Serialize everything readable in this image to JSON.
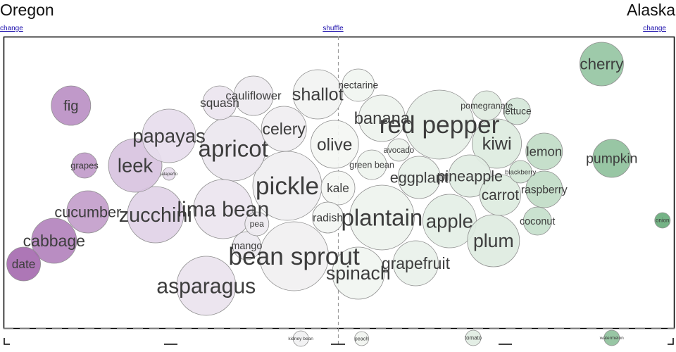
{
  "header": {
    "left_state": "Oregon",
    "right_state": "Alaska",
    "left_change": "change",
    "right_change": "change",
    "shuffle": "shuffle"
  },
  "colors": {
    "left_strong": "#9b59a6",
    "left_light": "#e7dded",
    "neutral": "#f4f6f3",
    "right_light": "#dcebdf",
    "right_strong": "#5fa873",
    "stroke": "#8f8f8f",
    "frame": "#000000",
    "divider": "#999999"
  },
  "chart_data": {
    "type": "scatter",
    "title": "",
    "xlabel": "",
    "ylabel": "",
    "xlim": [
      -1,
      1
    ],
    "items": [
      {
        "name": "fig",
        "x": -0.79,
        "y": 150,
        "size": 28
      },
      {
        "name": "grapes",
        "x": -0.75,
        "y": 235,
        "size": 18
      },
      {
        "name": "leek",
        "x": -0.6,
        "y": 235,
        "size": 38
      },
      {
        "name": "papayas",
        "x": -0.5,
        "y": 193,
        "size": 38
      },
      {
        "name": "jalapeño",
        "x": -0.5,
        "y": 247,
        "size": 9
      },
      {
        "name": "cucumber",
        "x": -0.74,
        "y": 301,
        "size": 30
      },
      {
        "name": "zucchini",
        "x": -0.54,
        "y": 305,
        "size": 40
      },
      {
        "name": "cabbage",
        "x": -0.84,
        "y": 342,
        "size": 32
      },
      {
        "name": "date",
        "x": -0.93,
        "y": 375,
        "size": 24
      },
      {
        "name": "squash",
        "x": -0.35,
        "y": 146,
        "size": 24
      },
      {
        "name": "cauliflower",
        "x": -0.25,
        "y": 136,
        "size": 28
      },
      {
        "name": "shallot",
        "x": -0.06,
        "y": 134,
        "size": 35
      },
      {
        "name": "celery",
        "x": -0.16,
        "y": 183,
        "size": 32
      },
      {
        "name": "apricot",
        "x": -0.31,
        "y": 211,
        "size": 46
      },
      {
        "name": "pickle",
        "x": -0.15,
        "y": 264,
        "size": 49
      },
      {
        "name": "lima bean",
        "x": -0.34,
        "y": 297,
        "size": 42
      },
      {
        "name": "pea",
        "x": -0.24,
        "y": 318,
        "size": 17
      },
      {
        "name": "mango",
        "x": -0.27,
        "y": 349,
        "size": 20
      },
      {
        "name": "bean sprout",
        "x": -0.13,
        "y": 364,
        "size": 49
      },
      {
        "name": "asparagus",
        "x": -0.39,
        "y": 406,
        "size": 42
      },
      {
        "name": "nectarine",
        "x": 0.06,
        "y": 121,
        "size": 23
      },
      {
        "name": "olive",
        "x": -0.01,
        "y": 205,
        "size": 34
      },
      {
        "name": "kale",
        "x": 0.0,
        "y": 267,
        "size": 24
      },
      {
        "name": "radish",
        "x": -0.03,
        "y": 309,
        "size": 22
      },
      {
        "name": "banana",
        "x": 0.13,
        "y": 168,
        "size": 33
      },
      {
        "name": "avocado",
        "x": 0.18,
        "y": 213,
        "size": 16
      },
      {
        "name": "green bean",
        "x": 0.1,
        "y": 234,
        "size": 21
      },
      {
        "name": "red pepper",
        "x": 0.3,
        "y": 177,
        "size": 49
      },
      {
        "name": "eggplant",
        "x": 0.24,
        "y": 252,
        "size": 30
      },
      {
        "name": "plantain",
        "x": 0.13,
        "y": 309,
        "size": 46
      },
      {
        "name": "spinach",
        "x": 0.06,
        "y": 388,
        "size": 37
      },
      {
        "name": "grapefruit",
        "x": 0.23,
        "y": 374,
        "size": 32
      },
      {
        "name": "pomegranate",
        "x": 0.44,
        "y": 150,
        "size": 21
      },
      {
        "name": "lettuce",
        "x": 0.53,
        "y": 158,
        "size": 19
      },
      {
        "name": "pineapple",
        "x": 0.39,
        "y": 250,
        "size": 30
      },
      {
        "name": "apple",
        "x": 0.33,
        "y": 314,
        "size": 38
      },
      {
        "name": "kiwi",
        "x": 0.47,
        "y": 204,
        "size": 35
      },
      {
        "name": "lemon",
        "x": 0.61,
        "y": 215,
        "size": 26
      },
      {
        "name": "blackberry",
        "x": 0.54,
        "y": 244,
        "size": 16
      },
      {
        "name": "carrot",
        "x": 0.48,
        "y": 277,
        "size": 29
      },
      {
        "name": "raspberry",
        "x": 0.61,
        "y": 269,
        "size": 26
      },
      {
        "name": "coconut",
        "x": 0.59,
        "y": 314,
        "size": 20
      },
      {
        "name": "plum",
        "x": 0.46,
        "y": 342,
        "size": 37
      },
      {
        "name": "cherry",
        "x": 0.78,
        "y": 91,
        "size": 31
      },
      {
        "name": "pumpkin",
        "x": 0.81,
        "y": 225,
        "size": 27
      },
      {
        "name": "onion",
        "x": 0.96,
        "y": 313,
        "size": 11
      },
      {
        "name": "kidney bean",
        "x": -0.11,
        "y": 481,
        "size": 11
      },
      {
        "name": "peach",
        "x": 0.07,
        "y": 481,
        "size": 10
      },
      {
        "name": "tomato",
        "x": 0.4,
        "y": 480,
        "size": 11
      },
      {
        "name": "watermelon",
        "x": 0.81,
        "y": 480,
        "size": 11
      }
    ]
  }
}
